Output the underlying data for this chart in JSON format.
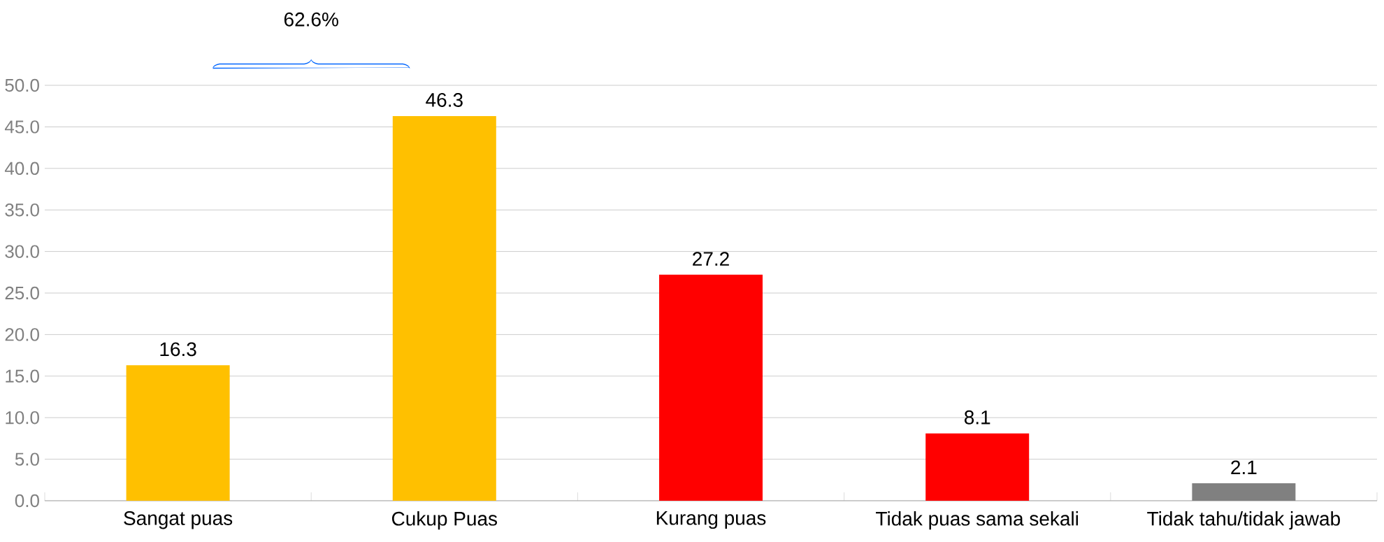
{
  "chart_data": {
    "type": "bar",
    "categories": [
      "Sangat puas",
      "Cukup Puas",
      "Kurang puas",
      "Tidak puas sama sekali",
      "Tidak tahu/tidak jawab"
    ],
    "values": [
      16.3,
      46.3,
      27.2,
      8.1,
      2.1
    ],
    "colors": [
      "#ffc000",
      "#ffc000",
      "#ff0000",
      "#ff0000",
      "#808080"
    ],
    "ylim": [
      0,
      50
    ],
    "yticks": [
      {
        "value": 0,
        "label": "0.0"
      },
      {
        "value": 5,
        "label": "5.0"
      },
      {
        "value": 10,
        "label": "10.0"
      },
      {
        "value": 15,
        "label": "15.0"
      },
      {
        "value": 20,
        "label": "20.0"
      },
      {
        "value": 25,
        "label": "25.0"
      },
      {
        "value": 30,
        "label": "30.0"
      },
      {
        "value": 35,
        "label": "35.0"
      },
      {
        "value": 40,
        "label": "40.0"
      },
      {
        "value": 45,
        "label": "45.0"
      },
      {
        "value": 50,
        "label": "50.0"
      }
    ],
    "grid": "y",
    "data_labels": true,
    "annotations": [
      "62.6%"
    ]
  }
}
